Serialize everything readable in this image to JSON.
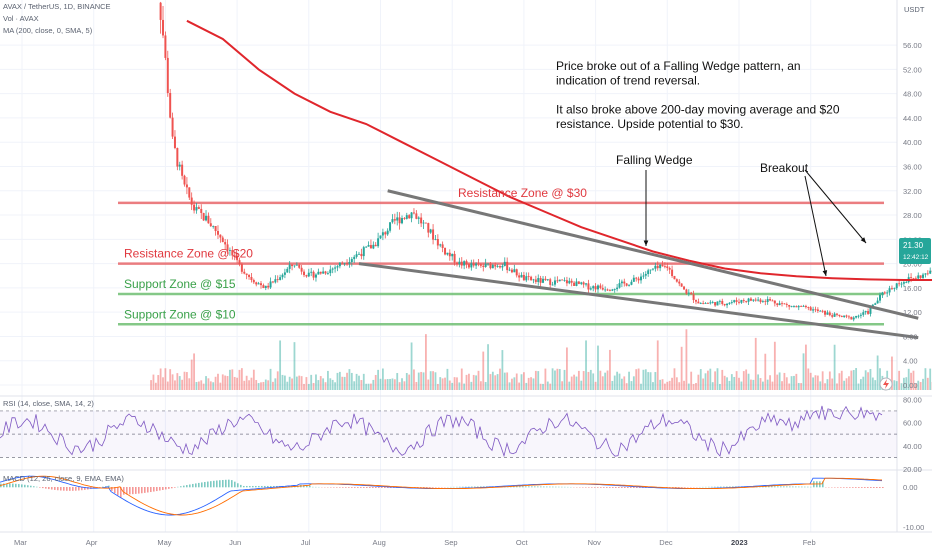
{
  "header": {
    "title": "AVAX / TetherUS, 1D, BINANCE",
    "vol_label": "Vol · AVAX",
    "ma_label": "MA (200, close, 0, SMA, 5)",
    "currency": "USDT"
  },
  "price_badge": {
    "value": "21.30",
    "sub": "12:42:12",
    "color": "#26a69a"
  },
  "chart_data": {
    "type": "candlestick",
    "price_axis_ticks": [
      "56.00",
      "52.00",
      "48.00",
      "44.00",
      "40.00",
      "36.00",
      "32.00",
      "28.00",
      "24.00",
      "20.00",
      "16.00",
      "12.00",
      "8.00",
      "4.00",
      "0.00"
    ],
    "price_range": [
      0,
      58
    ],
    "x_labels": [
      "Mar",
      "Apr",
      "May",
      "Jun",
      "Jul",
      "Aug",
      "Sep",
      "Oct",
      "Nov",
      "Dec",
      "2023",
      "Feb"
    ],
    "close_series": [
      {
        "m": 4.8,
        "v": 72
      },
      {
        "m": 4.95,
        "v": 60
      },
      {
        "m": 5.1,
        "v": 40
      },
      {
        "m": 5.25,
        "v": 33
      },
      {
        "m": 5.4,
        "v": 29
      },
      {
        "m": 5.6,
        "v": 27
      },
      {
        "m": 5.8,
        "v": 24
      },
      {
        "m": 6.0,
        "v": 20
      },
      {
        "m": 6.2,
        "v": 17.5
      },
      {
        "m": 6.4,
        "v": 16
      },
      {
        "m": 6.6,
        "v": 18
      },
      {
        "m": 6.8,
        "v": 20
      },
      {
        "m": 7.0,
        "v": 18
      },
      {
        "m": 7.3,
        "v": 19
      },
      {
        "m": 7.6,
        "v": 21
      },
      {
        "m": 7.9,
        "v": 23
      },
      {
        "m": 8.2,
        "v": 27
      },
      {
        "m": 8.45,
        "v": 28.5
      },
      {
        "m": 8.7,
        "v": 25
      },
      {
        "m": 8.9,
        "v": 22
      },
      {
        "m": 9.1,
        "v": 20
      },
      {
        "m": 9.4,
        "v": 19.5
      },
      {
        "m": 9.7,
        "v": 20
      },
      {
        "m": 10.0,
        "v": 17.5
      },
      {
        "m": 10.3,
        "v": 17
      },
      {
        "m": 10.6,
        "v": 17
      },
      {
        "m": 10.9,
        "v": 16.2
      },
      {
        "m": 11.2,
        "v": 16
      },
      {
        "m": 11.5,
        "v": 17
      },
      {
        "m": 11.8,
        "v": 19
      },
      {
        "m": 12.0,
        "v": 19.5
      },
      {
        "m": 12.2,
        "v": 16
      },
      {
        "m": 12.45,
        "v": 13.5
      },
      {
        "m": 12.8,
        "v": 13.5
      },
      {
        "m": 13.1,
        "v": 14
      },
      {
        "m": 13.4,
        "v": 14
      },
      {
        "m": 13.7,
        "v": 13
      },
      {
        "m": 14.0,
        "v": 12.5
      },
      {
        "m": 14.3,
        "v": 11.5
      },
      {
        "m": 14.55,
        "v": 11
      },
      {
        "m": 14.8,
        "v": 12
      },
      {
        "m": 15.0,
        "v": 15
      },
      {
        "m": 15.25,
        "v": 17
      },
      {
        "m": 15.55,
        "v": 18
      },
      {
        "m": 15.8,
        "v": 19
      },
      {
        "m": 16.0,
        "v": 21
      },
      {
        "m": 16.2,
        "v": 20.5
      },
      {
        "m": 16.35,
        "v": 21.3
      }
    ],
    "ma200": [
      {
        "m": 5.3,
        "v": 60
      },
      {
        "m": 5.8,
        "v": 57
      },
      {
        "m": 6.3,
        "v": 52
      },
      {
        "m": 6.8,
        "v": 48
      },
      {
        "m": 7.3,
        "v": 45
      },
      {
        "m": 7.8,
        "v": 43
      },
      {
        "m": 8.3,
        "v": 40
      },
      {
        "m": 8.8,
        "v": 37
      },
      {
        "m": 9.3,
        "v": 34
      },
      {
        "m": 9.8,
        "v": 31
      },
      {
        "m": 10.3,
        "v": 28.5
      },
      {
        "m": 10.8,
        "v": 26
      },
      {
        "m": 11.3,
        "v": 24
      },
      {
        "m": 11.8,
        "v": 22
      },
      {
        "m": 12.3,
        "v": 20.5
      },
      {
        "m": 12.8,
        "v": 19.2
      },
      {
        "m": 13.3,
        "v": 18.4
      },
      {
        "m": 13.8,
        "v": 17.9
      },
      {
        "m": 14.3,
        "v": 17.6
      },
      {
        "m": 14.8,
        "v": 17.4
      },
      {
        "m": 15.3,
        "v": 17.3
      },
      {
        "m": 15.8,
        "v": 17.3
      },
      {
        "m": 16.35,
        "v": 17.4
      }
    ],
    "zones": [
      {
        "label": "Resistance Zone @ $30",
        "value": 30,
        "color": "#e8676b"
      },
      {
        "label": "Resistance Zone @ $20",
        "value": 20,
        "color": "#e8676b"
      },
      {
        "label": "Support Zone @ $15",
        "value": 15,
        "color": "#6fbf73"
      },
      {
        "label": "Support Zone @ $10",
        "value": 10,
        "color": "#6fbf73"
      }
    ],
    "wedge_upper": [
      {
        "m": 8.1,
        "v": 32
      },
      {
        "m": 15.5,
        "v": 11
      }
    ],
    "wedge_lower": [
      {
        "m": 7.7,
        "v": 20
      },
      {
        "m": 15.5,
        "v": 7.8
      }
    ],
    "annotations": {
      "text_lines": [
        "Price broke out of a Falling Wedge pattern, an",
        "indication of trend reversal.",
        "",
        "It also broke above 200-day moving average and $20",
        "resistance. Upside potential to $30."
      ],
      "falling_wedge": "Falling Wedge",
      "breakout": "Breakout"
    },
    "volume_ticks": [],
    "rsi": {
      "label": "RSI (14, close, SMA, 14, 2)",
      "ticks": [
        "80.00",
        "60.00",
        "40.00",
        "20.00"
      ],
      "bands": [
        70,
        50,
        30
      ],
      "range": [
        20,
        82
      ]
    },
    "macd": {
      "label": "MACD (12, 26, close, 9, EMA, EMA)",
      "ticks": [
        "0.00",
        "-10.00"
      ],
      "range": [
        -11,
        4
      ]
    },
    "colors": {
      "up": "#26a69a",
      "down": "#ef5350",
      "ma": "#e0262c",
      "wedge": "#777777",
      "rsi": "#7e57c2",
      "macd": "#2962ff",
      "signal": "#ff6d00"
    }
  }
}
